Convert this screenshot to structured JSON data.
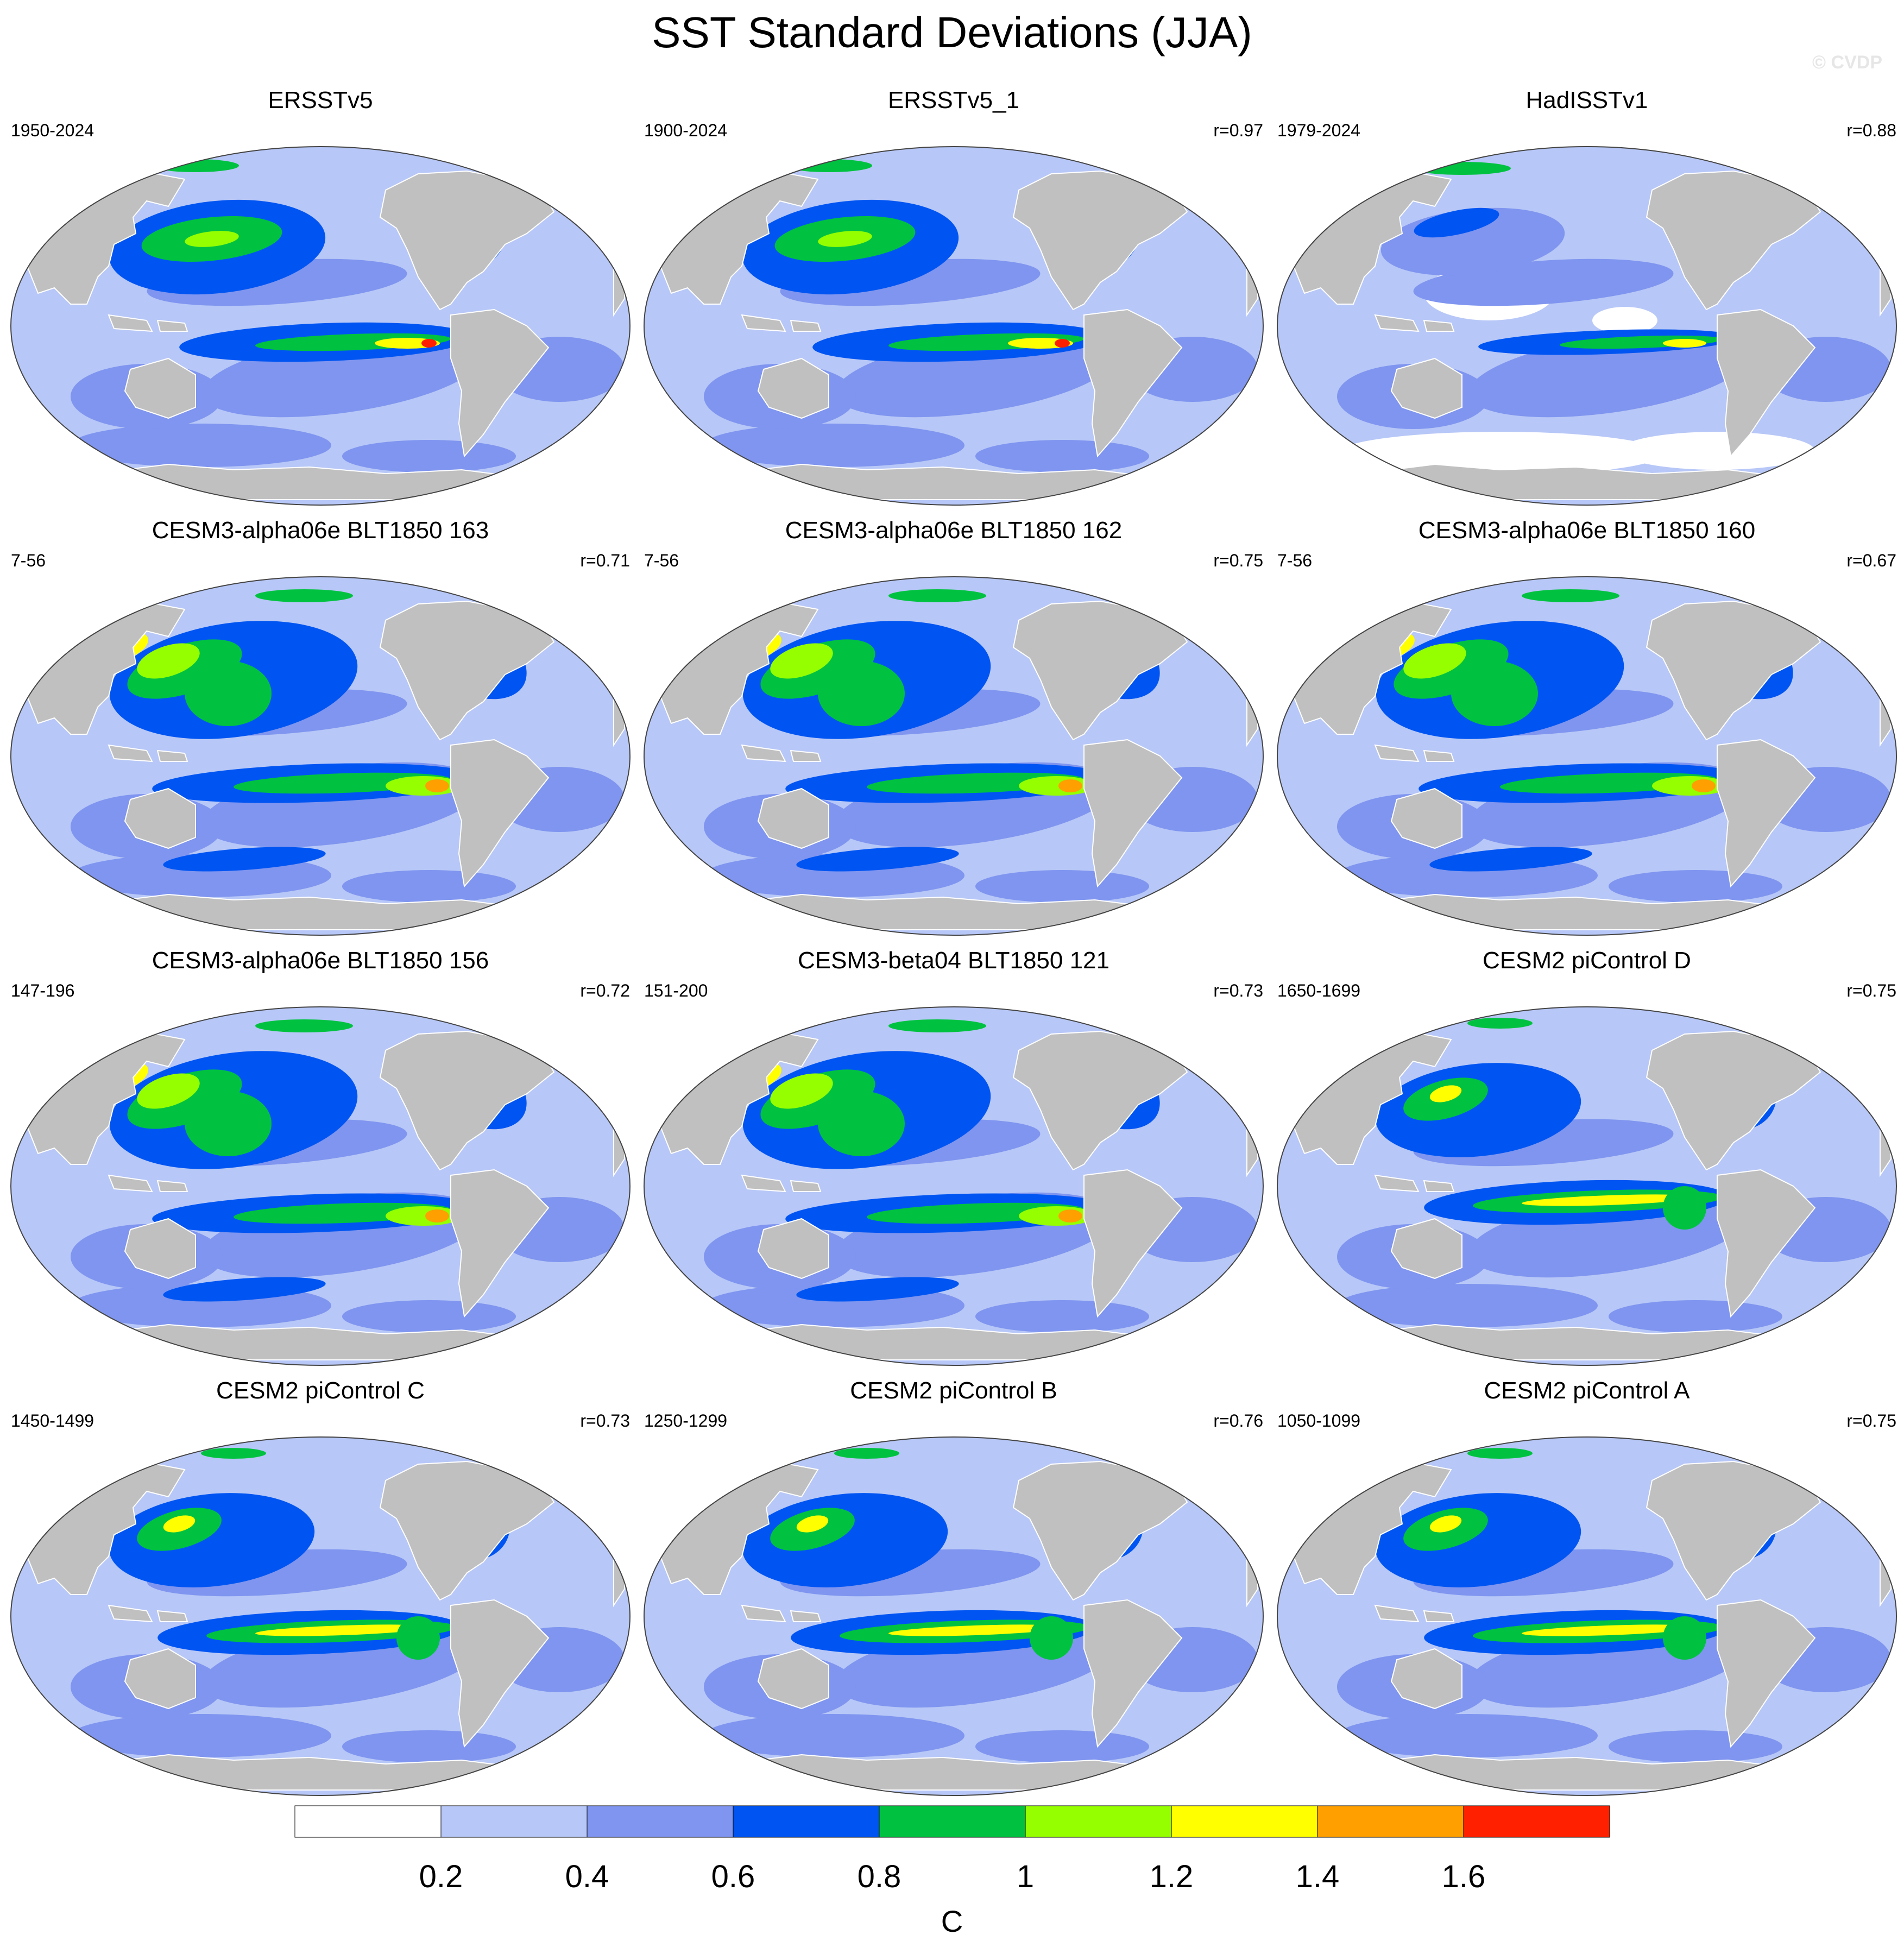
{
  "title": "SST Standard Deviations (JJA)",
  "watermark": "© CVDP",
  "colors": {
    "land": "#c0c0c0",
    "ocean_bg": "#b7c7f7",
    "bins": [
      "#ffffff",
      "#b7c7f7",
      "#7f95ef",
      "#0055f2",
      "#00c240",
      "#95ff00",
      "#ffff00",
      "#ff9f00",
      "#ff2000"
    ]
  },
  "panels": [
    {
      "title": "ERSSTv5",
      "period": "1950-2024",
      "corr": "",
      "style": "obs"
    },
    {
      "title": "ERSSTv5_1",
      "period": "1900-2024",
      "corr": "r=0.97",
      "style": "obs"
    },
    {
      "title": "HadISSTv1",
      "period": "1979-2024",
      "corr": "r=0.88",
      "style": "had"
    },
    {
      "title": "CESM3-alpha06e BLT1850 163",
      "period": "7-56",
      "corr": "r=0.71",
      "style": "cesm3"
    },
    {
      "title": "CESM3-alpha06e BLT1850 162",
      "period": "7-56",
      "corr": "r=0.75",
      "style": "cesm3"
    },
    {
      "title": "CESM3-alpha06e BLT1850 160",
      "period": "7-56",
      "corr": "r=0.67",
      "style": "cesm3"
    },
    {
      "title": "CESM3-alpha06e BLT1850 156",
      "period": "147-196",
      "corr": "r=0.72",
      "style": "cesm3"
    },
    {
      "title": "CESM3-beta04 BLT1850 121",
      "period": "151-200",
      "corr": "r=0.73",
      "style": "cesm3"
    },
    {
      "title": "CESM2 piControl D",
      "period": "1650-1699",
      "corr": "r=0.75",
      "style": "cesm2"
    },
    {
      "title": "CESM2 piControl C",
      "period": "1450-1499",
      "corr": "r=0.73",
      "style": "cesm2"
    },
    {
      "title": "CESM2 piControl B",
      "period": "1250-1299",
      "corr": "r=0.76",
      "style": "cesm2"
    },
    {
      "title": "CESM2 piControl A",
      "period": "1050-1099",
      "corr": "r=0.75",
      "style": "cesm2"
    }
  ],
  "colorbar": {
    "levels": [
      0.2,
      0.4,
      0.6,
      0.8,
      1.0,
      1.2,
      1.4,
      1.6
    ],
    "labels": [
      "0.2",
      "0.4",
      "0.6",
      "0.8",
      "1",
      "1.2",
      "1.4",
      "1.6"
    ],
    "units": "C"
  }
}
